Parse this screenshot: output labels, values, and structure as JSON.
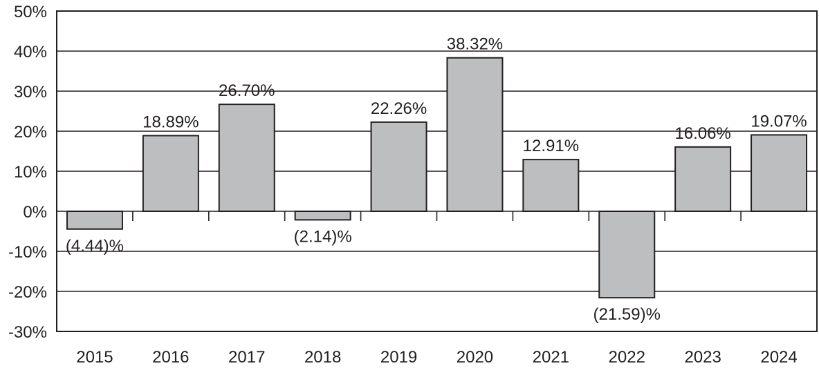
{
  "chart_data": {
    "type": "bar",
    "title": "",
    "xlabel": "",
    "ylabel": "",
    "categories": [
      "2015",
      "2016",
      "2017",
      "2018",
      "2019",
      "2020",
      "2021",
      "2022",
      "2023",
      "2024"
    ],
    "values": [
      -4.44,
      18.89,
      26.7,
      -2.14,
      22.26,
      38.32,
      12.91,
      -21.59,
      16.06,
      19.07
    ],
    "data_labels": [
      "(4.44)%",
      "18.89%",
      "26.70%",
      "(2.14)%",
      "22.26%",
      "38.32%",
      "12.91%",
      "(21.59)%",
      "16.06%",
      "19.07%"
    ],
    "ylim": [
      -30,
      50
    ],
    "yticks": [
      50,
      40,
      30,
      20,
      10,
      0,
      -10,
      -20,
      -30
    ],
    "ytick_labels": [
      "50%",
      "40%",
      "30%",
      "20%",
      "10%",
      "0%",
      "-10%",
      "-20%",
      "-30%"
    ],
    "grid": true,
    "legend": "none",
    "colors": {
      "bar_fill": "#bcbec0",
      "bar_stroke": "#231f20",
      "grid": "#231f20",
      "text": "#231f20"
    }
  }
}
